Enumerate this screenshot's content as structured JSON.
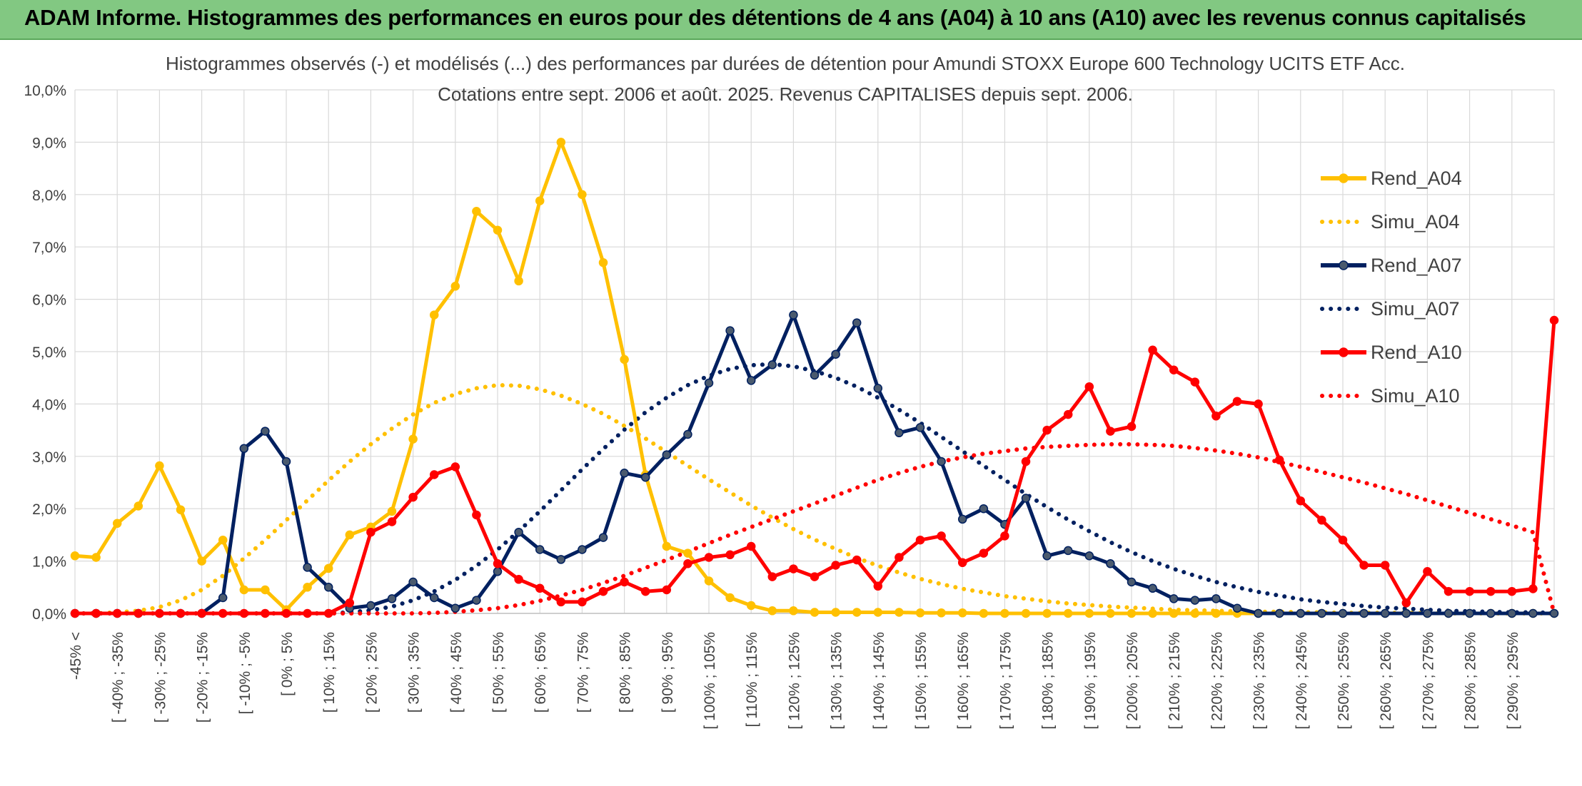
{
  "header": {
    "title": "ADAM Informe. Histogrammes des performances en euros pour des détentions de 4 ans (A04) à 10 ans (A10) avec les revenus connus capitalisés"
  },
  "chart_data": {
    "type": "line",
    "title_line1": "Histogrammes observés (-) et modélisés (...) des performances par durées de détention pour Amundi STOXX Europe 600 Technology UCITS ETF Acc.",
    "title_line2": "Cotations entre sept. 2006 et août. 2025. Revenus CAPITALISES depuis sept. 2006.",
    "ylim": [
      0,
      10
    ],
    "y_ticks": [
      "0,0%",
      "1,0%",
      "2,0%",
      "3,0%",
      "4,0%",
      "5,0%",
      "6,0%",
      "7,0%",
      "8,0%",
      "9,0%",
      "10,0%"
    ],
    "grid": true,
    "legend_position": "right",
    "x_labels": [
      "-45% <",
      "[ -40% ; -35%",
      "[ -30% ; -25%",
      "[ -20% ; -15%",
      "[ -10% ; -5%",
      "[ 0% ; 5%",
      "[ 10% ; 15%",
      "[ 20% ; 25%",
      "[ 30% ; 35%",
      "[ 40% ; 45%",
      "[ 50% ; 55%",
      "[ 60% ; 65%",
      "[ 70% ; 75%",
      "[ 80% ; 85%",
      "[ 90% ; 95%",
      "[ 100% ; 105%",
      "[ 110% ; 115%",
      "[ 120% ; 125%",
      "[ 130% ; 135%",
      "[ 140% ; 145%",
      "[ 150% ; 155%",
      "[ 160% ; 165%",
      "[ 170% ; 175%",
      "[ 180% ; 185%",
      "[ 190% ; 195%",
      "[ 200% ; 205%",
      "[ 210% ; 215%",
      "[ 220% ; 225%",
      "[ 230% ; 235%",
      "[ 240% ; 245%",
      "[ 250% ; 255%",
      "[ 260% ; 265%",
      "[ 270% ; 275%",
      "[ 280% ; 285%",
      "[ 290% ; 295%"
    ],
    "x_bins": [
      "-45% <",
      "-45%..-40%",
      "-40%..-35%",
      "-35%..-30%",
      "-30%..-25%",
      "-25%..-20%",
      "-20%..-15%",
      "-15%..-10%",
      "-10%..-5%",
      "-5%..0%",
      "0%..5%",
      "5%..10%",
      "10%..15%",
      "15%..20%",
      "20%..25%",
      "25%..30%",
      "30%..35%",
      "35%..40%",
      "40%..45%",
      "45%..50%",
      "50%..55%",
      "55%..60%",
      "60%..65%",
      "65%..70%",
      "70%..75%",
      "75%..80%",
      "80%..85%",
      "85%..90%",
      "90%..95%",
      "95%..100%",
      "100%..105%",
      "105%..110%",
      "110%..115%",
      "115%..120%",
      "120%..125%",
      "125%..130%",
      "130%..135%",
      "135%..140%",
      "140%..145%",
      "145%..150%",
      "150%..155%",
      "155%..160%",
      "160%..165%",
      "165%..170%",
      "170%..175%",
      "175%..180%",
      "180%..185%",
      "185%..190%",
      "190%..195%",
      "195%..200%",
      "200%..205%",
      "205%..210%",
      "210%..215%",
      "215%..220%",
      "220%..225%",
      "225%..230%",
      "230%..235%",
      "235%..240%",
      "240%..245%",
      "245%..250%",
      "250%..255%",
      "255%..260%",
      "260%..265%",
      "265%..270%",
      "270%..275%",
      "275%..280%",
      "280%..285%",
      "285%..290%",
      "290%..295%",
      "295%..300%",
      ">= 300%"
    ],
    "series": [
      {
        "name": "Rend_A04",
        "color": "#FFC000",
        "style": "solid",
        "markers": true,
        "values": [
          1.1,
          1.07,
          1.72,
          2.05,
          2.82,
          1.98,
          1.0,
          1.4,
          0.45,
          0.45,
          0.07,
          0.5,
          0.86,
          1.5,
          1.65,
          1.95,
          3.33,
          5.7,
          6.25,
          7.68,
          7.32,
          6.35,
          7.88,
          9.0,
          8.0,
          6.7,
          4.85,
          2.65,
          1.28,
          1.15,
          0.62,
          0.3,
          0.15,
          0.05,
          0.05,
          0.02,
          0.02,
          0.02,
          0.02,
          0.02,
          0.01,
          0.01,
          0.01,
          0,
          0,
          0,
          0,
          0,
          0,
          0,
          0,
          0,
          0,
          0,
          0,
          0,
          0,
          0,
          0,
          0,
          0,
          0,
          0,
          0,
          0,
          0,
          0,
          0,
          0,
          0,
          0
        ]
      },
      {
        "name": "Simu_A04",
        "color": "#FFC000",
        "style": "dotted",
        "markers": false,
        "values": [
          0,
          0,
          0.02,
          0.05,
          0.12,
          0.25,
          0.45,
          0.72,
          1.05,
          1.4,
          1.78,
          2.16,
          2.54,
          2.9,
          3.23,
          3.53,
          3.8,
          4.02,
          4.19,
          4.3,
          4.36,
          4.35,
          4.28,
          4.16,
          4.0,
          3.81,
          3.58,
          3.34,
          3.08,
          2.82,
          2.56,
          2.31,
          2.06,
          1.83,
          1.61,
          1.41,
          1.23,
          1.06,
          0.91,
          0.78,
          0.66,
          0.56,
          0.47,
          0.4,
          0.33,
          0.28,
          0.23,
          0.19,
          0.16,
          0.13,
          0.11,
          0.09,
          0.07,
          0.06,
          0.05,
          0.04,
          0.03,
          0.03,
          0.02,
          0.02,
          0.01,
          0.01,
          0.01,
          0.01,
          0.01,
          0,
          0,
          0,
          0,
          0,
          0
        ]
      },
      {
        "name": "Rend_A07",
        "color": "#002060",
        "style": "solid",
        "markers": true,
        "values": [
          0,
          0,
          0,
          0,
          0,
          0,
          0,
          0.3,
          3.15,
          3.48,
          2.9,
          0.88,
          0.5,
          0.1,
          0.15,
          0.28,
          0.6,
          0.3,
          0.1,
          0.25,
          0.8,
          1.55,
          1.22,
          1.03,
          1.22,
          1.45,
          2.68,
          2.6,
          3.03,
          3.42,
          4.4,
          5.4,
          4.45,
          4.75,
          5.7,
          4.55,
          4.95,
          5.55,
          4.3,
          3.45,
          3.55,
          2.9,
          1.8,
          2.0,
          1.7,
          2.2,
          1.1,
          1.2,
          1.1,
          0.95,
          0.6,
          0.48,
          0.28,
          0.25,
          0.28,
          0.1,
          0,
          0,
          0,
          0,
          0,
          0,
          0,
          0,
          0,
          0,
          0,
          0,
          0,
          0,
          0
        ]
      },
      {
        "name": "Simu_A07",
        "color": "#002060",
        "style": "dotted",
        "markers": false,
        "values": [
          0,
          0,
          0,
          0,
          0,
          0,
          0,
          0,
          0,
          0,
          0,
          0,
          0,
          0.02,
          0.06,
          0.13,
          0.25,
          0.42,
          0.64,
          0.91,
          1.22,
          1.57,
          1.95,
          2.35,
          2.75,
          3.14,
          3.51,
          3.84,
          4.12,
          4.36,
          4.54,
          4.67,
          4.74,
          4.76,
          4.72,
          4.63,
          4.5,
          4.33,
          4.12,
          3.89,
          3.64,
          3.37,
          3.1,
          2.82,
          2.55,
          2.28,
          2.03,
          1.79,
          1.57,
          1.36,
          1.17,
          1.0,
          0.85,
          0.72,
          0.6,
          0.5,
          0.41,
          0.34,
          0.27,
          0.22,
          0.18,
          0.14,
          0.11,
          0.09,
          0.07,
          0.05,
          0.04,
          0.03,
          0.02,
          0.02,
          0.01
        ]
      },
      {
        "name": "Rend_A10",
        "color": "#FF0000",
        "style": "solid",
        "markers": true,
        "values": [
          0,
          0,
          0,
          0,
          0,
          0,
          0,
          0,
          0,
          0,
          0,
          0,
          0,
          0.2,
          1.55,
          1.75,
          2.22,
          2.65,
          2.8,
          1.88,
          0.95,
          0.65,
          0.48,
          0.22,
          0.22,
          0.42,
          0.6,
          0.42,
          0.45,
          0.95,
          1.07,
          1.12,
          1.28,
          0.7,
          0.85,
          0.7,
          0.92,
          1.02,
          0.52,
          1.07,
          1.4,
          1.48,
          0.97,
          1.15,
          1.48,
          2.9,
          3.5,
          3.8,
          4.33,
          3.48,
          3.57,
          5.03,
          4.65,
          4.42,
          3.77,
          4.05,
          4.0,
          2.93,
          2.15,
          1.78,
          1.4,
          0.92,
          0.92,
          0.2,
          0.8,
          0.42,
          0.42,
          0.42,
          0.42,
          0.47,
          5.6
        ]
      },
      {
        "name": "Simu_A10",
        "color": "#FF0000",
        "style": "dotted",
        "markers": false,
        "values": [
          0,
          0,
          0,
          0,
          0,
          0,
          0,
          0,
          0,
          0,
          0,
          0,
          0,
          0,
          0,
          0,
          0,
          0.01,
          0.03,
          0.06,
          0.1,
          0.16,
          0.24,
          0.34,
          0.45,
          0.58,
          0.72,
          0.87,
          1.02,
          1.18,
          1.34,
          1.5,
          1.65,
          1.8,
          1.95,
          2.1,
          2.25,
          2.4,
          2.55,
          2.68,
          2.8,
          2.9,
          2.98,
          3.05,
          3.1,
          3.15,
          3.18,
          3.2,
          3.22,
          3.23,
          3.23,
          3.22,
          3.2,
          3.16,
          3.11,
          3.05,
          2.98,
          2.89,
          2.8,
          2.7,
          2.6,
          2.5,
          2.39,
          2.28,
          2.16,
          2.04,
          1.92,
          1.8,
          1.68,
          1.55,
          0
        ]
      }
    ]
  }
}
